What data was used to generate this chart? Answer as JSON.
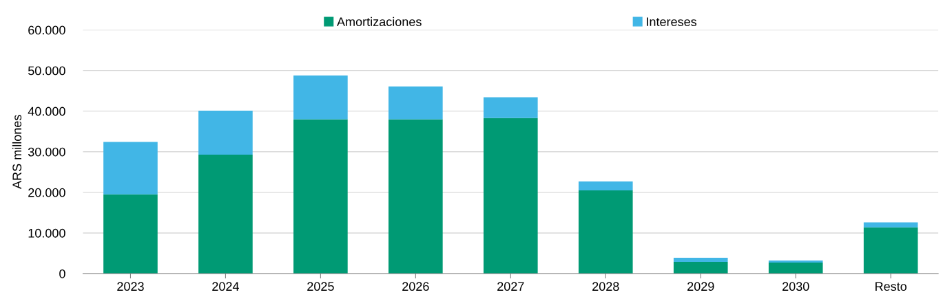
{
  "chart_data": {
    "type": "bar",
    "stacked": true,
    "ylabel": "ARS millones",
    "categories": [
      "2023",
      "2024",
      "2025",
      "2026",
      "2027",
      "2028",
      "2029",
      "2030",
      "Resto"
    ],
    "series": [
      {
        "name": "Amortizaciones",
        "color": "#009a74",
        "values": [
          19500,
          29300,
          38000,
          38000,
          38300,
          20500,
          2900,
          2700,
          11400
        ]
      },
      {
        "name": "Intereses",
        "color": "#41b6e6",
        "values": [
          12900,
          10800,
          10800,
          8100,
          5100,
          2200,
          1000,
          500,
          1200
        ]
      }
    ],
    "ylim": [
      0,
      60000
    ],
    "yticks": [
      {
        "value": 0,
        "label": "0"
      },
      {
        "value": 10000,
        "label": "10.000"
      },
      {
        "value": 20000,
        "label": "20.000"
      },
      {
        "value": 30000,
        "label": "30.000"
      },
      {
        "value": 40000,
        "label": "40.000"
      },
      {
        "value": 50000,
        "label": "50.000"
      },
      {
        "value": 60000,
        "label": "60.000"
      }
    ],
    "grid": "y",
    "legend": "top"
  }
}
